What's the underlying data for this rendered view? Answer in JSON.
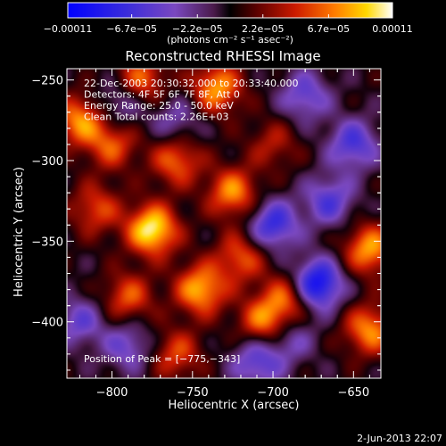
{
  "chart_data": {
    "type": "heatmap",
    "title": "Reconstructed RHESSI Image",
    "xlabel": "Heliocentric X (arcsec)",
    "ylabel": "Heliocentric Y (arcsec)",
    "xlim": [
      -828,
      -633
    ],
    "ylim": [
      -435,
      -243
    ],
    "x_ticks": [
      -800,
      -750,
      -700,
      -650
    ],
    "y_ticks": [
      -250,
      -300,
      -350,
      -400
    ],
    "x_tick_labels": [
      "−800",
      "−750",
      "−700",
      "−650"
    ],
    "y_tick_labels": [
      "−250",
      "−300",
      "−350",
      "−400"
    ],
    "info_lines": [
      "22-Dec-2003 20:30:32.000 to 20:33:40.000",
      "Detectors: 4F 5F 6F 7F 8F, Att 0",
      "Energy Range: 25.0 - 50.0 keV",
      "Clean    Total counts: 2.26E+03"
    ],
    "peak_label": "Position of Peak = [−775,−343]",
    "colorbar": {
      "range": [
        -0.00011,
        0.00011
      ],
      "tick_labels": [
        "−0.00011",
        "−6.7e−05",
        "−2.2e−05",
        "2.2e−05",
        "6.7e−05",
        "0.00011"
      ],
      "unit_label": "(photons cm⁻² s⁻¹ asec⁻²)"
    },
    "peak": {
      "x": -775,
      "y": -343
    },
    "blobs": [
      {
        "x": -775,
        "y": -343,
        "amp": 1.0
      },
      {
        "x": -782,
        "y": -250,
        "amp": 0.6
      },
      {
        "x": -800,
        "y": -290,
        "amp": 0.55
      },
      {
        "x": -760,
        "y": -300,
        "amp": 0.6
      },
      {
        "x": -735,
        "y": -255,
        "amp": 0.75
      },
      {
        "x": -725,
        "y": -320,
        "amp": 0.7
      },
      {
        "x": -720,
        "y": -360,
        "amp": 0.55
      },
      {
        "x": -745,
        "y": -380,
        "amp": 0.8
      },
      {
        "x": -790,
        "y": -385,
        "amp": 0.55
      },
      {
        "x": -810,
        "y": -330,
        "amp": 0.5
      },
      {
        "x": -705,
        "y": -400,
        "amp": 0.7
      },
      {
        "x": -690,
        "y": -385,
        "amp": 0.6
      },
      {
        "x": -760,
        "y": -420,
        "amp": 0.5
      },
      {
        "x": -640,
        "y": -355,
        "amp": 0.75
      },
      {
        "x": -640,
        "y": -405,
        "amp": 0.7
      },
      {
        "x": -820,
        "y": -275,
        "amp": 0.7
      },
      {
        "x": -700,
        "y": -290,
        "amp": 0.35
      },
      {
        "x": -680,
        "y": -260,
        "amp": -0.5
      },
      {
        "x": -700,
        "y": -340,
        "amp": -0.7
      },
      {
        "x": -665,
        "y": -325,
        "amp": -0.55
      },
      {
        "x": -673,
        "y": -377,
        "amp": -1.0
      },
      {
        "x": -710,
        "y": -425,
        "amp": -0.55
      },
      {
        "x": -790,
        "y": -415,
        "amp": -0.45
      },
      {
        "x": -795,
        "y": -265,
        "amp": -0.4
      },
      {
        "x": -760,
        "y": -275,
        "amp": -0.35
      },
      {
        "x": -650,
        "y": -290,
        "amp": -0.6
      },
      {
        "x": -820,
        "y": -400,
        "amp": -0.45
      },
      {
        "x": -690,
        "y": -410,
        "amp": -0.4
      }
    ]
  },
  "timestamp": "2-Jun-2013 22:07"
}
